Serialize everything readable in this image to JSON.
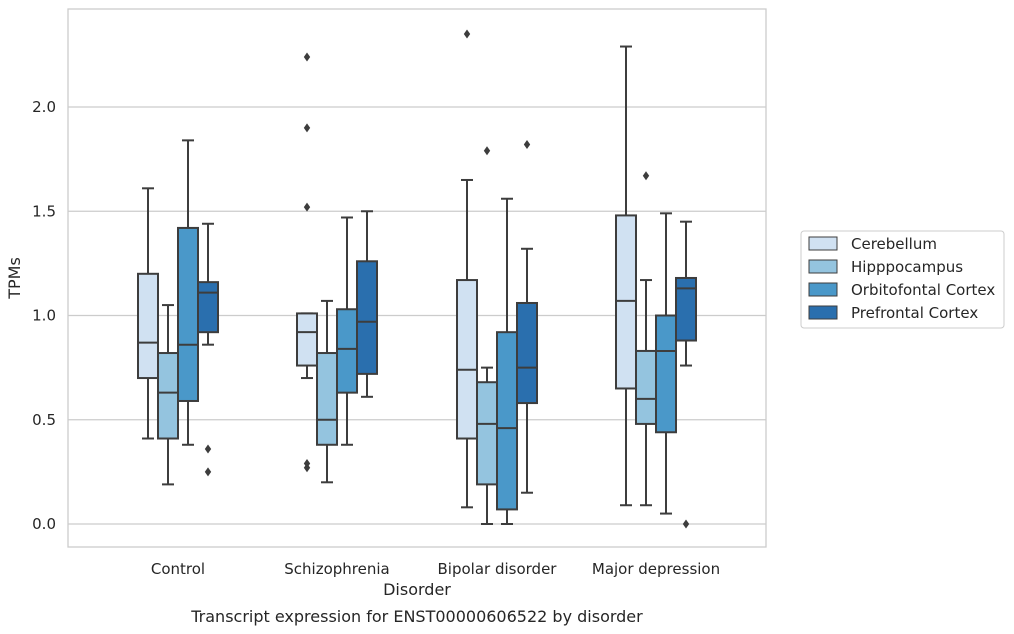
{
  "chart_data": {
    "type": "box",
    "title": "",
    "caption": "Transcript expression for ENST00000606522 by disorder",
    "xlabel": "Disorder",
    "ylabel": "TPMs",
    "categories": [
      "Control",
      "Schizophrenia",
      "Bipolar disorder",
      "Major depression"
    ],
    "ylim": [
      -0.11,
      2.48
    ],
    "yticks": [
      0.0,
      0.5,
      1.0,
      1.5,
      2.0
    ],
    "ytick_labels": [
      "0.0",
      "0.5",
      "1.0",
      "1.5",
      "2.0"
    ],
    "grid": "horizontal",
    "legend_position": "right",
    "series": [
      {
        "name": "Cerebellum",
        "color": "#d0e1f2",
        "boxes": [
          {
            "whislo": 0.41,
            "q1": 0.7,
            "med": 0.87,
            "q3": 1.2,
            "whishi": 1.61,
            "fliers": []
          },
          {
            "whislo": 0.7,
            "q1": 0.76,
            "med": 0.92,
            "q3": 1.01,
            "whishi": 1.01,
            "fliers": [
              0.27,
              0.29,
              1.52,
              1.9,
              2.24
            ]
          },
          {
            "whislo": 0.08,
            "q1": 0.41,
            "med": 0.74,
            "q3": 1.17,
            "whishi": 1.65,
            "fliers": [
              2.35
            ]
          },
          {
            "whislo": 0.09,
            "q1": 0.65,
            "med": 1.07,
            "q3": 1.48,
            "whishi": 2.29,
            "fliers": []
          }
        ]
      },
      {
        "name": "Hipppocampus",
        "color": "#94c4df",
        "boxes": [
          {
            "whislo": 0.19,
            "q1": 0.41,
            "med": 0.63,
            "q3": 0.82,
            "whishi": 1.05,
            "fliers": []
          },
          {
            "whislo": 0.2,
            "q1": 0.38,
            "med": 0.5,
            "q3": 0.82,
            "whishi": 1.07,
            "fliers": []
          },
          {
            "whislo": 0.0,
            "q1": 0.19,
            "med": 0.48,
            "q3": 0.68,
            "whishi": 0.75,
            "fliers": [
              1.79
            ]
          },
          {
            "whislo": 0.09,
            "q1": 0.48,
            "med": 0.6,
            "q3": 0.83,
            "whishi": 1.17,
            "fliers": [
              1.67
            ]
          }
        ]
      },
      {
        "name": "Orbitofontal Cortex",
        "color": "#4a98c9",
        "boxes": [
          {
            "whislo": 0.38,
            "q1": 0.59,
            "med": 0.86,
            "q3": 1.42,
            "whishi": 1.84,
            "fliers": []
          },
          {
            "whislo": 0.38,
            "q1": 0.63,
            "med": 0.84,
            "q3": 1.03,
            "whishi": 1.47,
            "fliers": []
          },
          {
            "whislo": 0.0,
            "q1": 0.07,
            "med": 0.46,
            "q3": 0.92,
            "whishi": 1.56,
            "fliers": []
          },
          {
            "whislo": 0.05,
            "q1": 0.44,
            "med": 0.83,
            "q3": 1.0,
            "whishi": 1.49,
            "fliers": []
          }
        ]
      },
      {
        "name": "Prefrontal Cortex",
        "color": "#2a6fae",
        "boxes": [
          {
            "whislo": 0.86,
            "q1": 0.92,
            "med": 1.11,
            "q3": 1.16,
            "whishi": 1.44,
            "fliers": [
              0.25,
              0.36
            ]
          },
          {
            "whislo": 0.61,
            "q1": 0.72,
            "med": 0.97,
            "q3": 1.26,
            "whishi": 1.5,
            "fliers": []
          },
          {
            "whislo": 0.15,
            "q1": 0.58,
            "med": 0.75,
            "q3": 1.06,
            "whishi": 1.32,
            "fliers": [
              1.82
            ]
          },
          {
            "whislo": 0.76,
            "q1": 0.88,
            "med": 1.13,
            "q3": 1.18,
            "whishi": 1.45,
            "fliers": [
              0.0
            ]
          }
        ]
      }
    ]
  }
}
